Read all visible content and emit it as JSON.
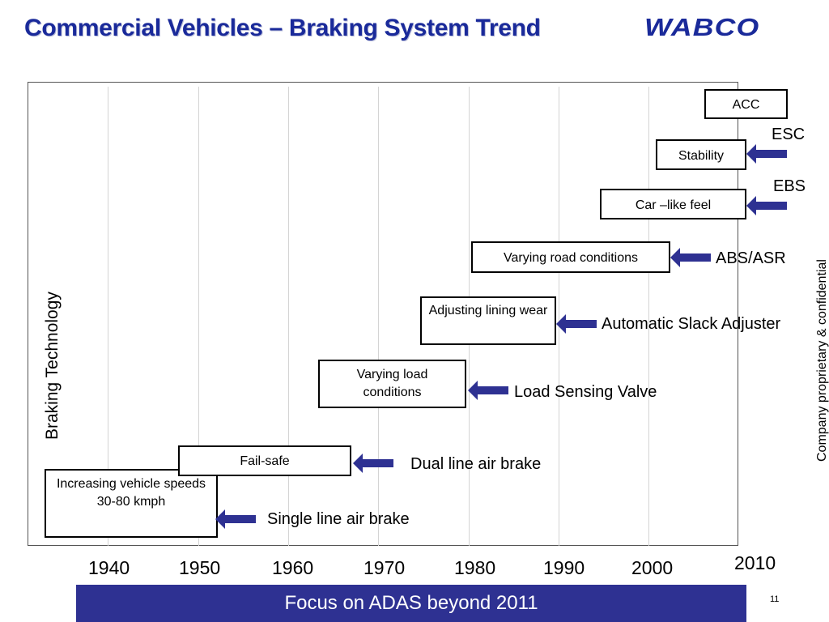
{
  "header": {
    "title": "Commercial Vehicles – Braking System Trend",
    "logo_text": "WABCO",
    "brand_color": "#1a2a9a"
  },
  "diagram": {
    "y_axis_label": "Braking Technology",
    "x_axis_years": [
      "1940",
      "1950",
      "1960",
      "1970",
      "1980",
      "1990",
      "2000",
      "2010"
    ],
    "arrow_color": "#2e3192",
    "entries": [
      {
        "driver": "Increasing vehicle speeds\n30-80 kmph",
        "technology": "Single line air brake",
        "arrow_icon": "left-arrow-icon"
      },
      {
        "driver": "Fail-safe",
        "technology": "Dual line air brake",
        "arrow_icon": "left-arrow-icon"
      },
      {
        "driver": "Varying load conditions",
        "technology": "Load Sensing Valve",
        "arrow_icon": "left-arrow-icon"
      },
      {
        "driver": "Adjusting lining wear",
        "technology": "Automatic Slack Adjuster",
        "arrow_icon": "left-arrow-icon"
      },
      {
        "driver": "Varying road conditions",
        "technology": "ABS/ASR",
        "arrow_icon": "left-arrow-icon"
      },
      {
        "driver": "Car –like feel",
        "technology": "EBS",
        "arrow_icon": "left-arrow-icon"
      },
      {
        "driver": "Stability",
        "technology": "ESC",
        "arrow_icon": "left-arrow-icon"
      },
      {
        "driver": "ACC",
        "technology": "",
        "arrow_icon": ""
      }
    ]
  },
  "side_label": "Company proprietary & confidential",
  "footer": {
    "banner_text": "Focus on ADAS beyond 2011",
    "banner_color": "#2e3192",
    "page_number": "11"
  }
}
